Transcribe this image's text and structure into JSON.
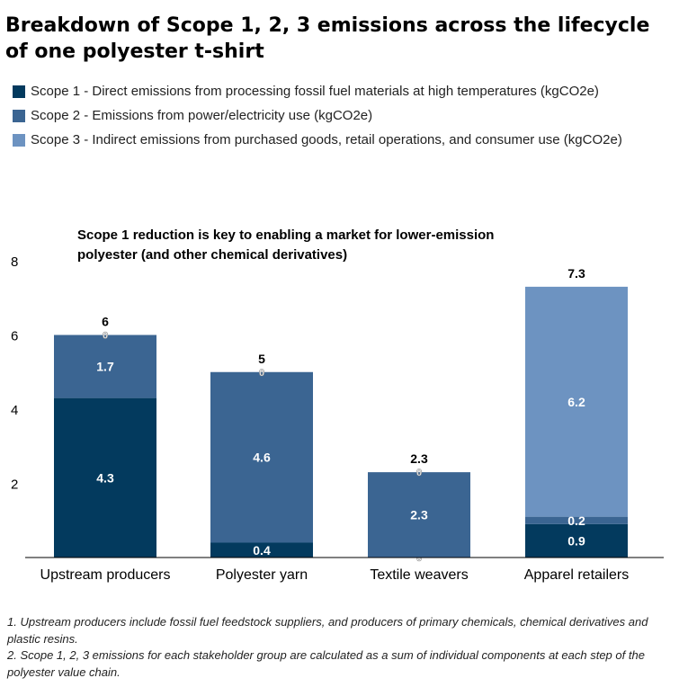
{
  "title": "Breakdown of Scope 1, 2, 3 emissions across the lifecycle of one polyester t-shirt",
  "colors": {
    "scope1": "#033a5e",
    "scope2": "#3b6592",
    "scope3": "#6d93c1"
  },
  "legend": [
    {
      "key": "scope1",
      "label": "Scope 1 - Direct emissions from processing fossil fuel materials at high temperatures (kgCO2e)"
    },
    {
      "key": "scope2",
      "label": "Scope 2 - Emissions from power/electricity use (kgCO2e)"
    },
    {
      "key": "scope3",
      "label": "Scope 3 - Indirect emissions from purchased goods, retail operations, and consumer use (kgCO2e)"
    }
  ],
  "chart_data": {
    "type": "bar",
    "stacked": true,
    "subtitle": "Scope 1 reduction is key to enabling a market for lower-emission polyester (and other chemical derivatives)",
    "categories": [
      "Upstream producers",
      "Polyester yarn",
      "Textile weavers",
      "Apparel retailers"
    ],
    "series": [
      {
        "name": "Scope 1",
        "key": "scope1",
        "values": [
          4.3,
          0.4,
          0,
          0.9
        ],
        "labels": [
          "4.3",
          "0.4",
          "0",
          "0.9"
        ]
      },
      {
        "name": "Scope 2",
        "key": "scope2",
        "values": [
          1.7,
          4.6,
          2.3,
          0.2
        ],
        "labels": [
          "1.7",
          "4.6",
          "2.3",
          "0.2"
        ]
      },
      {
        "name": "Scope 3",
        "key": "scope3",
        "values": [
          0,
          0,
          0,
          6.2
        ],
        "labels": [
          "0",
          "0",
          "0",
          "6.2"
        ]
      }
    ],
    "totals": [
      6,
      5,
      2.3,
      7.3
    ],
    "total_labels": [
      "6",
      "5",
      "2.3",
      "7.3"
    ],
    "ylim": [
      0,
      8
    ],
    "yticks": [
      2,
      4,
      6,
      8
    ],
    "ytick_labels": [
      "2",
      "4",
      "6",
      "8"
    ],
    "xlabel": "",
    "ylabel": ""
  },
  "footnotes": [
    "1. Upstream producers include fossil fuel feedstock suppliers, and producers of primary chemicals, chemical derivatives and plastic resins.",
    "2. Scope 1, 2, 3 emissions for each stakeholder group are calculated as a sum of individual components at each step of the polyester value chain."
  ]
}
